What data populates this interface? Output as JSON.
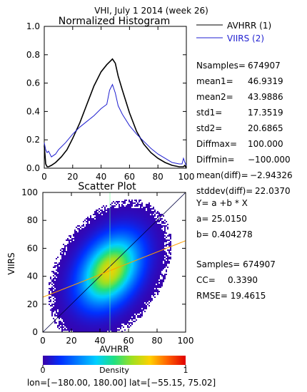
{
  "header": {
    "title": "VHI,  July 1 2014 (week 26)"
  },
  "stats": {
    "nsamples": {
      "label": "Nsamples=",
      "value": "674907"
    },
    "mean1": {
      "label": "mean1=",
      "value": "46.9319"
    },
    "mean2": {
      "label": "mean2=",
      "value": "43.9886"
    },
    "std1": {
      "label": "std1=",
      "value": "17.3519"
    },
    "std2": {
      "label": "std2=",
      "value": "20.6865"
    },
    "diffmax": {
      "label": "Diffmax=",
      "value": "100.000"
    },
    "diffmin": {
      "label": "Diffmin=",
      "value": "−100.000"
    },
    "meandiff": {
      "label": "mean(diff)=",
      "value": "−2.94326"
    },
    "stddev": {
      "label": "stddev(diff)=",
      "value": "22.0370"
    }
  },
  "regression": {
    "equation": "Y= a +b * X",
    "a": "a= 25.0150",
    "b": "b= 0.404278",
    "samples": "Samples= 674907",
    "cc_label": "CC=",
    "cc_value": "0.3390",
    "rmse": "RMSE= 19.4615"
  },
  "colorbar": {
    "label": "Density",
    "min": "0",
    "max": "1"
  },
  "footer": {
    "region": "lon=[−180.00, 180.00] lat=[−55.15, 75.02]"
  },
  "chart_data": [
    {
      "type": "line",
      "title": "Normalized Histogram",
      "x_ticks": [
        "0",
        "20",
        "40",
        "60",
        "80",
        "100"
      ],
      "y_ticks": [
        "0.0",
        "0.2",
        "0.4",
        "0.6",
        "0.8",
        "1.0"
      ],
      "xlim": [
        0,
        100
      ],
      "ylim": [
        0,
        1.0
      ],
      "colors": {
        "AVHRR (1)": "#000000",
        "VIIRS (2)": "#1f1fd0"
      },
      "legend": "top-right",
      "series": [
        {
          "name": "AVHRR (1)",
          "x": [
            0,
            1,
            2,
            3,
            5,
            8,
            12,
            16,
            20,
            25,
            30,
            35,
            40,
            44,
            46,
            48,
            50,
            52,
            55,
            60,
            65,
            70,
            75,
            80,
            85,
            90,
            95,
            98,
            99,
            100
          ],
          "y": [
            0.16,
            0.03,
            0.01,
            0.01,
            0.02,
            0.04,
            0.08,
            0.13,
            0.21,
            0.32,
            0.45,
            0.58,
            0.68,
            0.73,
            0.75,
            0.77,
            0.74,
            0.65,
            0.55,
            0.39,
            0.26,
            0.17,
            0.11,
            0.07,
            0.04,
            0.02,
            0.01,
            0.01,
            0.02,
            0.0
          ]
        },
        {
          "name": "VIIRS (2)",
          "x": [
            0,
            1,
            2,
            3,
            5,
            8,
            10,
            15,
            20,
            25,
            30,
            35,
            40,
            44,
            46,
            48,
            50,
            52,
            55,
            60,
            65,
            70,
            75,
            80,
            85,
            90,
            95,
            97,
            98,
            99,
            100
          ],
          "y": [
            0.18,
            0.13,
            0.11,
            0.12,
            0.08,
            0.1,
            0.13,
            0.18,
            0.24,
            0.29,
            0.33,
            0.37,
            0.42,
            0.45,
            0.55,
            0.59,
            0.53,
            0.44,
            0.38,
            0.3,
            0.24,
            0.19,
            0.14,
            0.1,
            0.07,
            0.04,
            0.03,
            0.03,
            0.07,
            0.04,
            0.02
          ]
        }
      ]
    },
    {
      "type": "scatter",
      "title": "Scatter Plot",
      "xlabel": "AVHRR",
      "ylabel": "VIIRS",
      "x_ticks": [
        "0",
        "20",
        "40",
        "60",
        "80",
        "100"
      ],
      "y_ticks": [
        "0",
        "20",
        "40",
        "60",
        "80",
        "100"
      ],
      "xlim": [
        0,
        100
      ],
      "ylim": [
        0,
        100
      ],
      "density": {
        "center_x": 47,
        "center_y": 44,
        "std_x": 17.35,
        "std_y": 20.69,
        "correlation": 0.339
      },
      "regression_line": {
        "intercept": 25.015,
        "slope": 0.404278
      },
      "identity_line": true,
      "color_scale": [
        "#3a00a8",
        "#0030ff",
        "#0080ff",
        "#00d0ff",
        "#20e080",
        "#a0e020",
        "#ffd000",
        "#ff6000",
        "#e00000"
      ]
    }
  ]
}
